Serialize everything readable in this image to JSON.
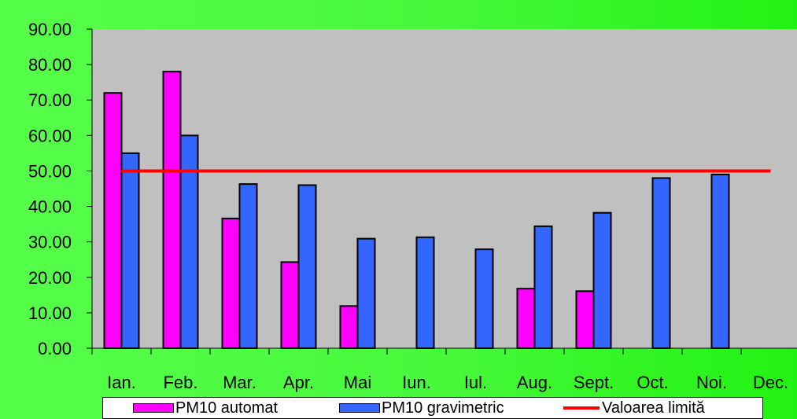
{
  "chart_data": {
    "type": "bar",
    "categories": [
      "Ian.",
      "Feb.",
      "Mar.",
      "Apr.",
      "Mai",
      "Iun.",
      "Iul.",
      "Aug.",
      "Sept.",
      "Oct.",
      "Noi.",
      "Dec."
    ],
    "series": [
      {
        "name": "PM10 automat",
        "color": "#ff00ff",
        "values": [
          72.0,
          78.0,
          36.6,
          24.3,
          11.9,
          null,
          null,
          16.8,
          16.1,
          null,
          null,
          null
        ]
      },
      {
        "name": "PM10 gravimetric",
        "color": "#3366ff",
        "values": [
          55.0,
          60.0,
          46.3,
          46.0,
          30.9,
          31.3,
          27.9,
          34.4,
          38.2,
          48.0,
          49.0,
          null
        ]
      }
    ],
    "reference_line": {
      "name": "Valoarea limită",
      "color": "#ff0000",
      "value": 50
    },
    "yticks": [
      "0.00",
      "10.00",
      "20.00",
      "30.00",
      "40.00",
      "50.00",
      "60.00",
      "70.00",
      "80.00",
      "90.00"
    ],
    "ylim": [
      0,
      90
    ],
    "title": "",
    "xlabel": "",
    "ylabel": "",
    "plot_background": "#c0c0c0",
    "legend_position": "bottom"
  }
}
